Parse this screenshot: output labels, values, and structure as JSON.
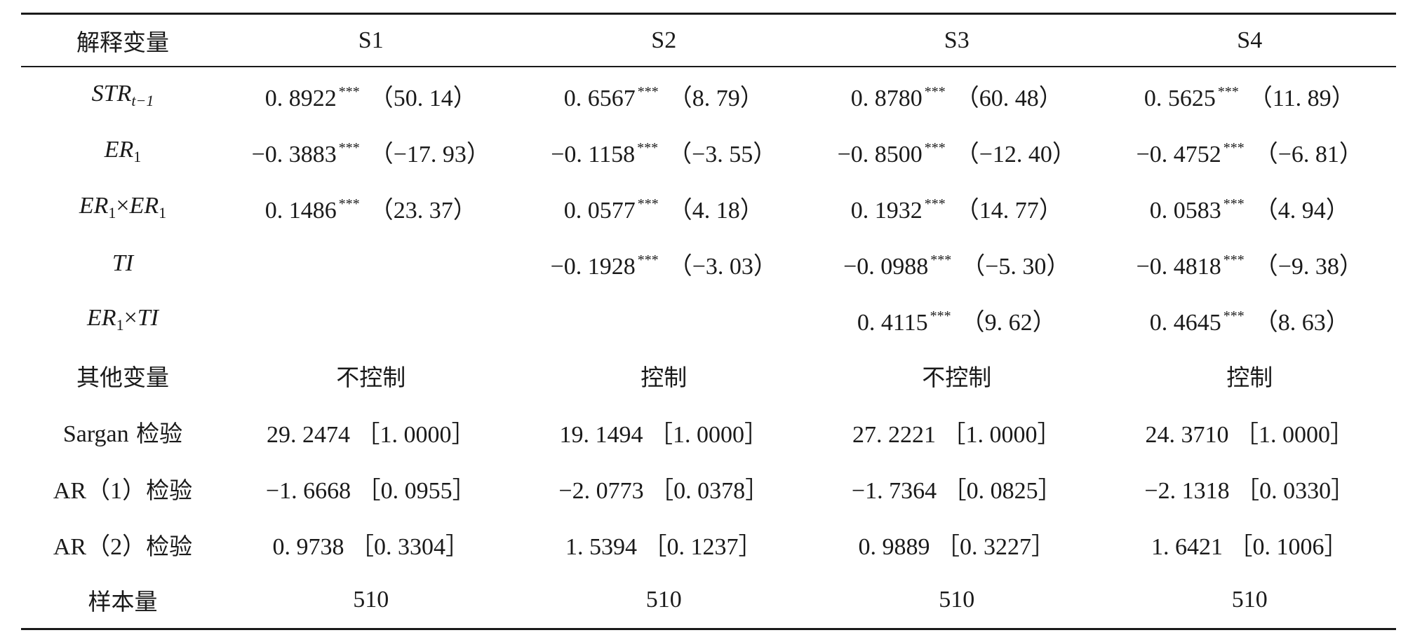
{
  "header": {
    "var_col": "解释变量",
    "models": [
      "S1",
      "S2",
      "S3",
      "S4"
    ]
  },
  "rows": {
    "str": {
      "label_main": "STR",
      "label_sub": "t−1",
      "cells": [
        {
          "coef": "0. 8922",
          "stars": "***",
          "t": "（50. 14）"
        },
        {
          "coef": "0. 6567",
          "stars": "***",
          "t": "（8. 79）"
        },
        {
          "coef": "0. 8780",
          "stars": "***",
          "t": "（60. 48）"
        },
        {
          "coef": "0. 5625",
          "stars": "***",
          "t": "（11. 89）"
        }
      ]
    },
    "er1": {
      "label_main": "ER",
      "label_sub": "1",
      "cells": [
        {
          "coef": "−0. 3883",
          "stars": "***",
          "t": "（−17. 93）"
        },
        {
          "coef": "−0. 1158",
          "stars": "***",
          "t": "（−3. 55）"
        },
        {
          "coef": "−0. 8500",
          "stars": "***",
          "t": "（−12. 40）"
        },
        {
          "coef": "−0. 4752",
          "stars": "***",
          "t": "（−6. 81）"
        }
      ]
    },
    "er1sq": {
      "label_a": "ER",
      "label_a_sub": "1",
      "label_times": "×",
      "label_b": "ER",
      "label_b_sub": "1",
      "cells": [
        {
          "coef": "0. 1486",
          "stars": "***",
          "t": "（23. 37）"
        },
        {
          "coef": "0. 0577",
          "stars": "***",
          "t": "（4. 18）"
        },
        {
          "coef": "0. 1932",
          "stars": "***",
          "t": "（14. 77）"
        },
        {
          "coef": "0. 0583",
          "stars": "***",
          "t": "（4. 94）"
        }
      ]
    },
    "ti": {
      "label_main": "TI",
      "cells": [
        null,
        {
          "coef": "−0. 1928",
          "stars": "***",
          "t": "（−3. 03）"
        },
        {
          "coef": "−0. 0988",
          "stars": "***",
          "t": "（−5. 30）"
        },
        {
          "coef": "−0. 4818",
          "stars": "***",
          "t": "（−9. 38）"
        }
      ]
    },
    "er1ti": {
      "label_a": "ER",
      "label_a_sub": "1",
      "label_times": "×",
      "label_b": "TI",
      "cells": [
        null,
        null,
        {
          "coef": "0. 4115",
          "stars": "***",
          "t": "（9. 62）"
        },
        {
          "coef": "0. 4645",
          "stars": "***",
          "t": "（8. 63）"
        }
      ]
    },
    "other": {
      "label": "其他变量",
      "cells": [
        "不控制",
        "控制",
        "不控制",
        "控制"
      ]
    },
    "sargan": {
      "label_a": "Sargan",
      "label_b": " 检验",
      "cells": [
        "29. 2474 ［1. 0000］",
        "19. 1494 ［1. 0000］",
        "27. 2221 ［1. 0000］",
        "24. 3710 ［1. 0000］"
      ]
    },
    "ar1": {
      "label_a": "AR（1）",
      "label_b": "检验",
      "cells": [
        "−1. 6668 ［0. 0955］",
        "−2. 0773 ［0. 0378］",
        "−1. 7364 ［0. 0825］",
        "−2. 1318 ［0. 0330］"
      ]
    },
    "ar2": {
      "label_a": "AR（2）",
      "label_b": "检验",
      "cells": [
        "0. 9738 ［0. 3304］",
        "1. 5394 ［0. 1237］",
        "0. 9889 ［0. 3227］",
        "1. 6421 ［0. 1006］"
      ]
    },
    "n": {
      "label": "样本量",
      "cells": [
        "510",
        "510",
        "510",
        "510"
      ]
    }
  }
}
